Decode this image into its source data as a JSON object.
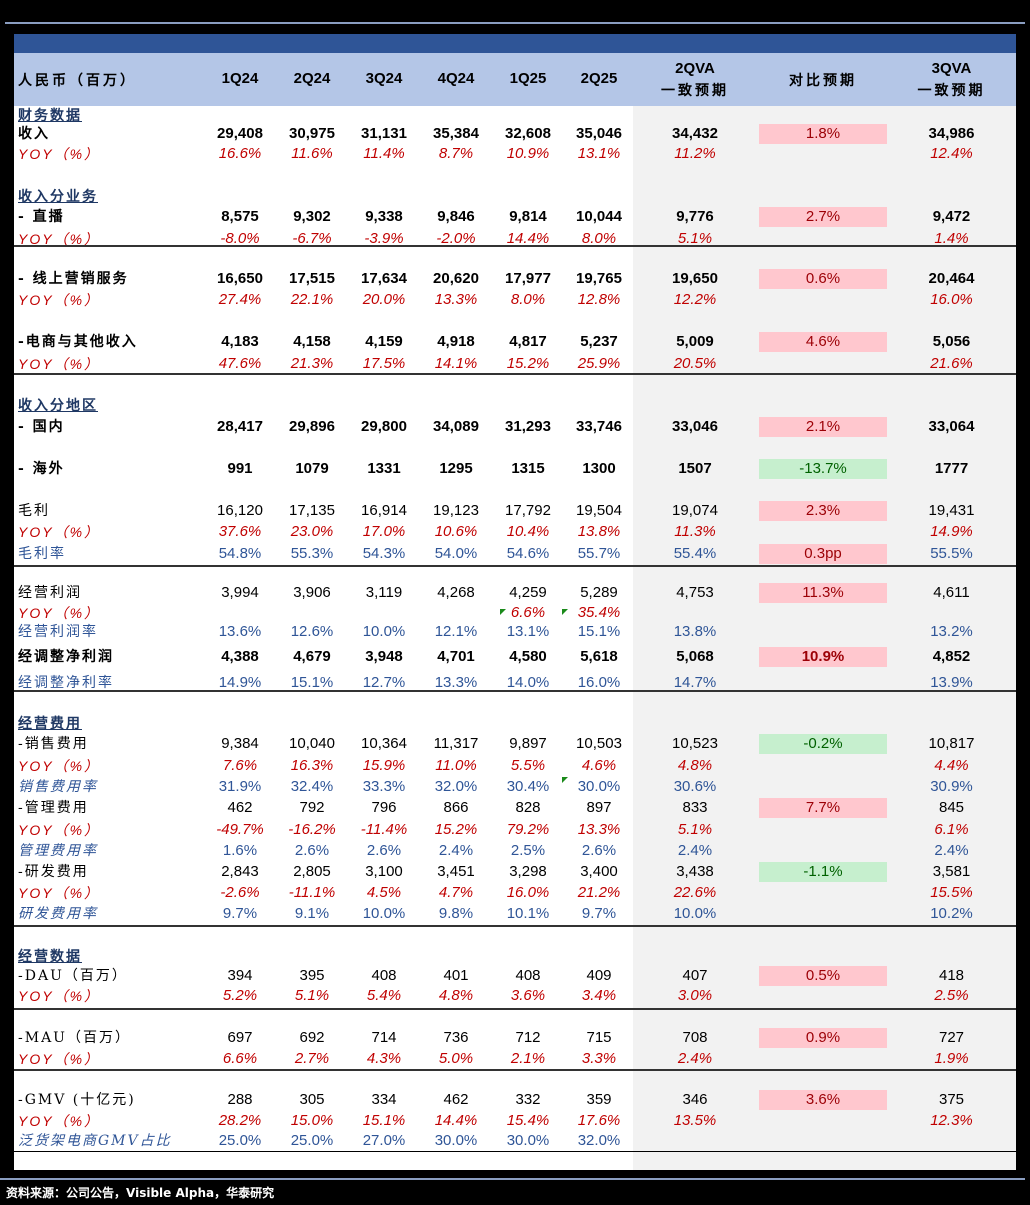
{
  "header": {
    "unit": "人民币（百万）",
    "quarters": [
      "1Q24",
      "2Q24",
      "3Q24",
      "4Q24",
      "1Q25",
      "2Q25"
    ],
    "col_2qva_line1": "2QVA",
    "col_2qva_line2": "一致预期",
    "col_compare": "对比预期",
    "col_3qva_line1": "3QVA",
    "col_3qva_line2": "一致预期"
  },
  "rows": [
    {
      "label": "财务数据",
      "type": "section"
    },
    {
      "label": "收入",
      "type": "bold",
      "values": [
        "29,408",
        "30,975",
        "31,131",
        "35,384",
        "32,608",
        "35,046"
      ],
      "est2": "34,432",
      "cmp": "1.8%",
      "cmp_color": "pink",
      "est3": "34,986"
    },
    {
      "label": "YOY（%）",
      "type": "yoy",
      "values": [
        "16.6%",
        "11.6%",
        "11.4%",
        "8.7%",
        "10.9%",
        "13.1%"
      ],
      "est2": "11.2%",
      "est3": "12.4%"
    },
    {
      "label": "收入分业务",
      "type": "section"
    },
    {
      "label": " - 直播",
      "type": "bold",
      "values": [
        "8,575",
        "9,302",
        "9,338",
        "9,846",
        "9,814",
        "10,044"
      ],
      "est2": "9,776",
      "cmp": "2.7%",
      "cmp_color": "pink",
      "est3": "9,472"
    },
    {
      "label": " YOY（%）",
      "type": "yoy",
      "values": [
        "-8.0%",
        "-6.7%",
        "-3.9%",
        "-2.0%",
        "14.4%",
        "8.0%"
      ],
      "est2": "5.1%",
      "est3": "1.4%"
    },
    {
      "label": " - 线上营销服务",
      "type": "bold",
      "values": [
        "16,650",
        "17,515",
        "17,634",
        "20,620",
        "17,977",
        "19,765"
      ],
      "est2": "19,650",
      "cmp": "0.6%",
      "cmp_color": "pink",
      "est3": "20,464"
    },
    {
      "label": " YOY（%）",
      "type": "yoy",
      "values": [
        "27.4%",
        "22.1%",
        "20.0%",
        "13.3%",
        "8.0%",
        "12.8%"
      ],
      "est2": "12.2%",
      "est3": "16.0%"
    },
    {
      "label": " -电商与其他收入",
      "type": "bold",
      "values": [
        "4,183",
        "4,158",
        "4,159",
        "4,918",
        "4,817",
        "5,237"
      ],
      "est2": "5,009",
      "cmp": "4.6%",
      "cmp_color": "pink",
      "est3": "5,056"
    },
    {
      "label": " YOY（%）",
      "type": "yoy",
      "values": [
        "47.6%",
        "21.3%",
        "17.5%",
        "14.1%",
        "15.2%",
        "25.9%"
      ],
      "est2": "20.5%",
      "est3": "21.6%"
    },
    {
      "label": "收入分地区",
      "type": "section"
    },
    {
      "label": " - 国内",
      "type": "bold",
      "values": [
        "28,417",
        "29,896",
        "29,800",
        "34,089",
        "31,293",
        "33,746"
      ],
      "est2": "33,046",
      "cmp": "2.1%",
      "cmp_color": "pink",
      "est3": "33,064"
    },
    {
      "label": " - 海外",
      "type": "bold",
      "values": [
        "991",
        "1079",
        "1331",
        "1295",
        "1315",
        "1300"
      ],
      "est2": "1507",
      "cmp": "-13.7%",
      "cmp_color": "green",
      "est3": "1777"
    },
    {
      "label": "毛利",
      "type": "plain",
      "values": [
        "16,120",
        "17,135",
        "16,914",
        "19,123",
        "17,792",
        "19,504"
      ],
      "est2": "19,074",
      "cmp": "2.3%",
      "cmp_color": "pink",
      "est3": "19,431"
    },
    {
      "label": "YOY（%）",
      "type": "yoy",
      "values": [
        "37.6%",
        "23.0%",
        "17.0%",
        "10.6%",
        "10.4%",
        "13.8%"
      ],
      "est2": "11.3%",
      "est3": "14.9%"
    },
    {
      "label": "毛利率",
      "type": "ratio",
      "values": [
        "54.8%",
        "55.3%",
        "54.3%",
        "54.0%",
        "54.6%",
        "55.7%"
      ],
      "est2": "55.4%",
      "cmp": "0.3pp",
      "cmp_color": "pink",
      "est3": "55.5%"
    },
    {
      "label": "经营利润",
      "type": "plain",
      "values": [
        "3,994",
        "3,906",
        "3,119",
        "4,268",
        "4,259",
        "5,289"
      ],
      "est2": "4,753",
      "cmp": "11.3%",
      "cmp_color": "pink",
      "est3": "4,611"
    },
    {
      "label": "YOY（%）",
      "type": "yoy",
      "values": [
        "",
        "",
        "",
        "",
        "6.6%",
        "35.4%"
      ],
      "est2": "",
      "est3": ""
    },
    {
      "label": "经营利润率",
      "type": "ratio",
      "values": [
        "13.6%",
        "12.6%",
        "10.0%",
        "12.1%",
        "13.1%",
        "15.1%"
      ],
      "est2": "13.8%",
      "est3": "13.2%"
    },
    {
      "label": "经调整净利润",
      "type": "bold",
      "values": [
        "4,388",
        "4,679",
        "3,948",
        "4,701",
        "4,580",
        "5,618"
      ],
      "est2": "5,068",
      "cmp": "10.9%",
      "cmp_color": "pink",
      "est3": "4,852"
    },
    {
      "label": "经调整净利率",
      "type": "ratio",
      "values": [
        "14.9%",
        "15.1%",
        "12.7%",
        "13.3%",
        "14.0%",
        "16.0%"
      ],
      "est2": "14.7%",
      "est3": "13.9%"
    },
    {
      "label": "经营费用",
      "type": "section"
    },
    {
      "label": " -销售费用",
      "type": "plain",
      "values": [
        "9,384",
        "10,040",
        "10,364",
        "11,317",
        "9,897",
        "10,503"
      ],
      "est2": "10,523",
      "cmp": "-0.2%",
      "cmp_color": "green",
      "est3": "10,817"
    },
    {
      "label": " YOY（%）",
      "type": "yoy",
      "values": [
        "7.6%",
        "16.3%",
        "15.9%",
        "11.0%",
        "5.5%",
        "4.6%"
      ],
      "est2": "4.8%",
      "est3": "4.4%"
    },
    {
      "label": "销售费用率",
      "type": "ratio_italic",
      "values": [
        "31.9%",
        "32.4%",
        "33.3%",
        "32.0%",
        "30.4%",
        "30.0%"
      ],
      "est2": "30.6%",
      "est3": "30.9%"
    },
    {
      "label": " -管理费用",
      "type": "plain",
      "values": [
        "462",
        "792",
        "796",
        "866",
        "828",
        "897"
      ],
      "est2": "833",
      "cmp": "7.7%",
      "cmp_color": "pink",
      "est3": "845"
    },
    {
      "label": " YOY（%）",
      "type": "yoy",
      "values": [
        "-49.7%",
        "-16.2%",
        "-11.4%",
        "15.2%",
        "79.2%",
        "13.3%"
      ],
      "est2": "5.1%",
      "est3": "6.1%"
    },
    {
      "label": "管理费用率",
      "type": "ratio_italic",
      "values": [
        "1.6%",
        "2.6%",
        "2.6%",
        "2.4%",
        "2.5%",
        "2.6%"
      ],
      "est2": "2.4%",
      "est3": "2.4%"
    },
    {
      "label": " -研发费用",
      "type": "plain",
      "values": [
        "2,843",
        "2,805",
        "3,100",
        "3,451",
        "3,298",
        "3,400"
      ],
      "est2": "3,438",
      "cmp": "-1.1%",
      "cmp_color": "green",
      "est3": "3,581"
    },
    {
      "label": " YOY（%）",
      "type": "yoy",
      "values": [
        "-2.6%",
        "-11.1%",
        "4.5%",
        "4.7%",
        "16.0%",
        "21.2%"
      ],
      "est2": "22.6%",
      "est3": "15.5%"
    },
    {
      "label": "研发费用率",
      "type": "ratio_italic",
      "values": [
        "9.7%",
        "9.1%",
        "10.0%",
        "9.8%",
        "10.1%",
        "9.7%"
      ],
      "est2": "10.0%",
      "est3": "10.2%"
    },
    {
      "label": "经营数据",
      "type": "section"
    },
    {
      "label": " -DAU（百万）",
      "type": "plain",
      "values": [
        "394",
        "395",
        "408",
        "401",
        "408",
        "409"
      ],
      "est2": "407",
      "cmp": "0.5%",
      "cmp_color": "pink",
      "est3": "418"
    },
    {
      "label": " YOY（%）",
      "type": "yoy",
      "values": [
        "5.2%",
        "5.1%",
        "5.4%",
        "4.8%",
        "3.6%",
        "3.4%"
      ],
      "est2": "3.0%",
      "est3": "2.5%"
    },
    {
      "label": " -MAU（百万）",
      "type": "plain",
      "values": [
        "697",
        "692",
        "714",
        "736",
        "712",
        "715"
      ],
      "est2": "708",
      "cmp": "0.9%",
      "cmp_color": "pink",
      "est3": "727"
    },
    {
      "label": " YOY（%）",
      "type": "yoy",
      "values": [
        "6.6%",
        "2.7%",
        "4.3%",
        "5.0%",
        "2.1%",
        "3.3%"
      ],
      "est2": "2.4%",
      "est3": "1.9%"
    },
    {
      "label": " -GMV (十亿元)",
      "type": "plain",
      "values": [
        "288",
        "305",
        "334",
        "462",
        "332",
        "359"
      ],
      "est2": "346",
      "cmp": "3.6%",
      "cmp_color": "pink",
      "est3": "375"
    },
    {
      "label": " YOY（%）",
      "type": "yoy",
      "values": [
        "28.2%",
        "15.0%",
        "15.1%",
        "14.4%",
        "15.4%",
        "17.6%"
      ],
      "est2": "13.5%",
      "est3": "12.3%"
    },
    {
      "label": "泛货架电商GMV占比",
      "type": "ratio_italic",
      "values": [
        "25.0%",
        "25.0%",
        "27.0%",
        "30.0%",
        "30.0%",
        "32.0%"
      ],
      "est2": "",
      "est3": ""
    }
  ],
  "footer": {
    "source": "资料来源：公司公告，Visible Alpha，华泰研究"
  },
  "colors": {
    "header_dark": "#2f5597",
    "header_light": "#b4c6e7",
    "yoy_red": "#c00000",
    "ratio_blue": "#2f5597",
    "beat_pink": "#ffc7ce",
    "miss_green": "#c6efce"
  }
}
